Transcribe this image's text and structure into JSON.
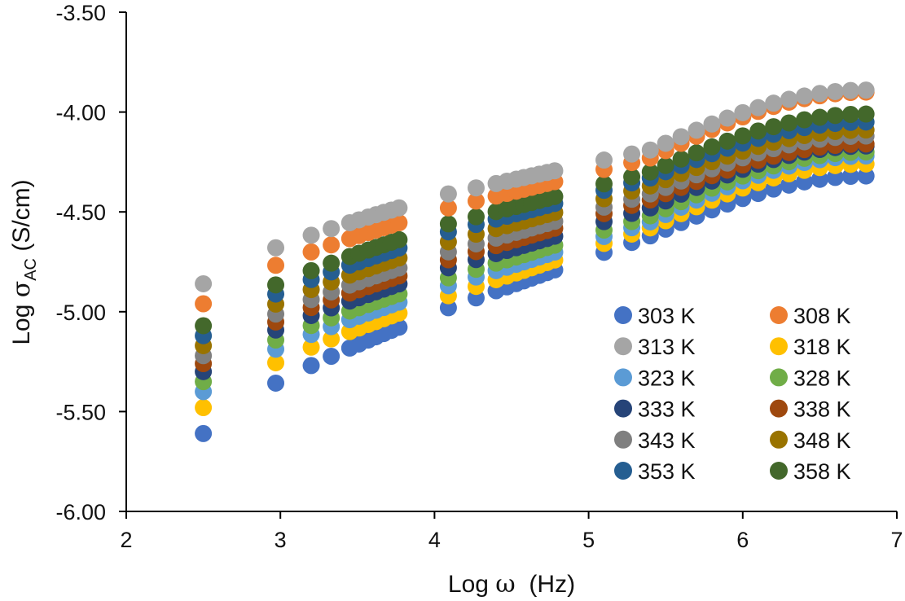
{
  "chart_data": {
    "type": "scatter",
    "title": "",
    "xlabel": {
      "prefix": "Log ",
      "symbol": "ω",
      "suffix": "  (Hz)"
    },
    "ylabel": {
      "prefix": "Log ",
      "symbol": "σ",
      "subscript": "AC",
      "suffix": " (S/cm)"
    },
    "xlim": [
      2,
      7
    ],
    "ylim": [
      -6.0,
      -3.5
    ],
    "xticks": [
      2,
      3,
      4,
      5,
      6,
      7
    ],
    "xtick_labels": [
      "2",
      "3",
      "4",
      "5",
      "6",
      "7"
    ],
    "yticks": [
      -3.5,
      -4.0,
      -4.5,
      -5.0,
      -5.5,
      -6.0
    ],
    "ytick_labels": [
      "-3.50",
      "-4.00",
      "-4.50",
      "-5.00",
      "-5.50",
      "-6.00"
    ],
    "grid": false,
    "legend_position": "bottom-right",
    "x_points": [
      2.5,
      2.97,
      3.2,
      3.33,
      3.45,
      3.51,
      3.57,
      3.62,
      3.67,
      3.72,
      3.77,
      4.09,
      4.27,
      4.4,
      4.47,
      4.53,
      4.58,
      4.63,
      4.68,
      4.73,
      4.78,
      5.1,
      5.28,
      5.4,
      5.5,
      5.6,
      5.7,
      5.8,
      5.9,
      6.0,
      6.1,
      6.2,
      6.3,
      6.4,
      6.5,
      6.6,
      6.7,
      6.8
    ],
    "series": [
      {
        "name": "303 K",
        "color": "#4472C4",
        "y_start": -5.61,
        "y_mid": -4.98,
        "y_high": -4.62,
        "y_end": -4.32
      },
      {
        "name": "308 K",
        "color": "#ED7D31",
        "y_start": -4.96,
        "y_mid": -4.48,
        "y_high": -4.23,
        "y_end": -3.9
      },
      {
        "name": "313 K",
        "color": "#A5A5A5",
        "y_start": -4.86,
        "y_mid": -4.41,
        "y_high": -4.19,
        "y_end": -3.89
      },
      {
        "name": "318 K",
        "color": "#FFC000",
        "y_start": -5.48,
        "y_mid": -4.92,
        "y_high": -4.58,
        "y_end": -4.26
      },
      {
        "name": "323 K",
        "color": "#5B9BD5",
        "y_start": -5.4,
        "y_mid": -4.87,
        "y_high": -4.55,
        "y_end": -4.22
      },
      {
        "name": "328 K",
        "color": "#70AD47",
        "y_start": -5.35,
        "y_mid": -4.83,
        "y_high": -4.52,
        "y_end": -4.2
      },
      {
        "name": "333 K",
        "color": "#264478",
        "y_start": -5.3,
        "y_mid": -4.78,
        "y_high": -4.48,
        "y_end": -4.17
      },
      {
        "name": "338 K",
        "color": "#9E480E",
        "y_start": -5.26,
        "y_mid": -4.74,
        "y_high": -4.44,
        "y_end": -4.16
      },
      {
        "name": "343 K",
        "color": "#7F7F7F",
        "y_start": -5.22,
        "y_mid": -4.7,
        "y_high": -4.41,
        "y_end": -4.12
      },
      {
        "name": "348 K",
        "color": "#997300",
        "y_start": -5.17,
        "y_mid": -4.65,
        "y_high": -4.37,
        "y_end": -4.09
      },
      {
        "name": "353 K",
        "color": "#255E91",
        "y_start": -5.12,
        "y_mid": -4.6,
        "y_high": -4.33,
        "y_end": -4.05
      },
      {
        "name": "358 K",
        "color": "#43682B",
        "y_start": -5.07,
        "y_mid": -4.56,
        "y_high": -4.3,
        "y_end": -4.01
      }
    ]
  }
}
